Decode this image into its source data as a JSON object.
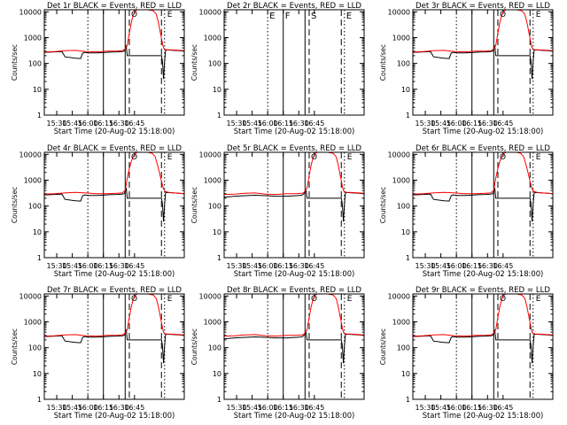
{
  "figure": {
    "start_time_label": "Start Time (20-Aug-02 15:18:00)",
    "y_axis_label": "Counts/sec",
    "colors": {
      "events": "#000000",
      "lld": "#ff0000"
    },
    "panels": [
      {
        "title": "Det 1r BLACK = Events, RED = LLD",
        "has_data": true,
        "lld_dip": false
      },
      {
        "title": "Det 2r BLACK = Events, RED = LLD",
        "has_data": false,
        "lld_dip": false
      },
      {
        "title": "Det 3r BLACK = Events, RED = LLD",
        "has_data": true,
        "lld_dip": false
      },
      {
        "title": "Det 4r BLACK = Events, RED = LLD",
        "has_data": true,
        "lld_dip": false
      },
      {
        "title": "Det 5r BLACK = Events, RED = LLD",
        "has_data": true,
        "lld_dip": true
      },
      {
        "title": "Det 6r BLACK = Events, RED = LLD",
        "has_data": true,
        "lld_dip": false
      },
      {
        "title": "Det 7r BLACK = Events, RED = LLD",
        "has_data": true,
        "lld_dip": false
      },
      {
        "title": "Det 8r BLACK = Events, RED = LLD",
        "has_data": true,
        "lld_dip": true
      },
      {
        "title": "Det 9r BLACK = Events, RED = LLD",
        "has_data": true,
        "lld_dip": false
      }
    ],
    "markers": [
      {
        "time_min": 42,
        "style": "dotted",
        "label": "E"
      },
      {
        "time_min": 57,
        "style": "solid",
        "label": "F"
      },
      {
        "time_min": 78,
        "style": "solid",
        "label": ""
      },
      {
        "time_min": 82,
        "style": "dashed",
        "label": "S"
      },
      {
        "time_min": 113,
        "style": "dashed",
        "label": ""
      },
      {
        "time_min": 116,
        "style": "dotted",
        "label": "E"
      }
    ]
  },
  "chart_data": {
    "type": "line",
    "yscale": "log",
    "ylim": [
      1,
      12000
    ],
    "xlim_min": [
      0,
      135
    ],
    "y_ticks": [
      "1",
      "10",
      "100",
      "1000",
      "10000"
    ],
    "y_tick_values": [
      1,
      10,
      100,
      1000,
      10000
    ],
    "x_ticks": [
      "15:30",
      "15:45",
      "16:00",
      "16:15",
      "16:30",
      "16:45"
    ],
    "x_tick_values_min": [
      12,
      27,
      42,
      57,
      72,
      87
    ],
    "series": [
      {
        "x": [
          0,
          10,
          20,
          30,
          40,
          50,
          55,
          60,
          65,
          70,
          75,
          77,
          80,
          82,
          84,
          86,
          88,
          90,
          92,
          95,
          100,
          105,
          108,
          110,
          112,
          114,
          115,
          116,
          117,
          118,
          120,
          125,
          130,
          135
        ],
        "y": [
          280,
          290,
          310,
          320,
          290,
          280,
          290,
          300,
          300,
          300,
          310,
          330,
          500,
          1500,
          4000,
          8000,
          11000,
          12000,
          12000,
          12000,
          12000,
          11000,
          8000,
          4000,
          1500,
          600,
          400,
          360,
          350,
          340,
          340,
          330,
          320,
          310
        ]
      },
      {
        "x": [
          0,
          10,
          17,
          20,
          30,
          35,
          37,
          39,
          41,
          43,
          50,
          55,
          60,
          65,
          70,
          75,
          77,
          78,
          79,
          80,
          113,
          114,
          115,
          116,
          117,
          118,
          120,
          125,
          130,
          135
        ],
        "y": [
          270,
          280,
          290,
          180,
          160,
          155,
          250,
          270,
          260,
          255,
          255,
          260,
          270,
          275,
          280,
          290,
          300,
          350,
          500,
          200,
          200,
          120,
          25,
          120,
          320,
          330,
          330,
          320,
          310,
          300
        ]
      },
      {
        "x": [
          0,
          10,
          20,
          30,
          40,
          50,
          60,
          70,
          75,
          78,
          80,
          82,
          84,
          86,
          88,
          90,
          95,
          100,
          104,
          107,
          110,
          113,
          115,
          117,
          120,
          125,
          130,
          135
        ],
        "y": [
          290,
          300,
          320,
          340,
          320,
          300,
          300,
          310,
          320,
          400,
          1200,
          2800,
          5500,
          8500,
          11000,
          12000,
          12000,
          12000,
          11000,
          8000,
          3000,
          900,
          450,
          360,
          340,
          320,
          310,
          300
        ]
      },
      {
        "x": [
          0,
          10,
          20,
          30,
          40,
          50,
          60,
          70,
          75,
          77,
          78,
          79,
          80,
          113,
          114,
          115,
          116,
          117,
          118,
          120,
          125,
          130,
          135
        ],
        "y": [
          220,
          240,
          250,
          260,
          250,
          240,
          240,
          250,
          260,
          300,
          350,
          380,
          200,
          200,
          120,
          25,
          120,
          320,
          330,
          330,
          320,
          310,
          300
        ]
      }
    ]
  }
}
